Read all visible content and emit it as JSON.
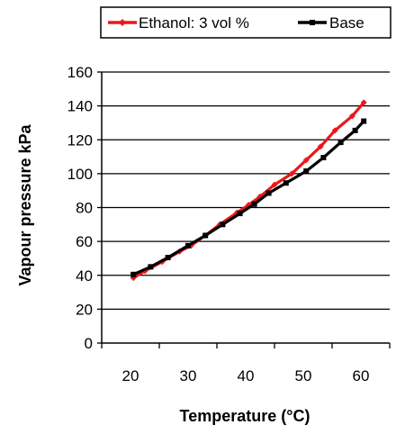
{
  "chart_data": {
    "type": "line",
    "title": "",
    "xlabel": "Temperature (°C)",
    "ylabel": "Vapour pressure kPa",
    "xlim": [
      15,
      65
    ],
    "ylim": [
      0,
      160
    ],
    "x_ticks": [
      20,
      30,
      40,
      50,
      60
    ],
    "y_ticks": [
      0,
      20,
      40,
      60,
      80,
      100,
      120,
      140,
      160
    ],
    "grid": "horizontal",
    "legend_position": "top",
    "series": [
      {
        "name": "Ethanol: 3 vol %",
        "color": "#e8191c",
        "marker": "diamond",
        "points": [
          [
            20.5,
            38.5
          ],
          [
            22.5,
            42.5
          ],
          [
            25.5,
            48
          ],
          [
            28.5,
            54
          ],
          [
            30.5,
            57.5
          ],
          [
            33,
            63.5
          ],
          [
            35.5,
            70
          ],
          [
            38.5,
            77
          ],
          [
            40.5,
            81.5
          ],
          [
            42.5,
            86.5
          ],
          [
            45,
            93.5
          ],
          [
            48,
            100
          ],
          [
            50.5,
            108
          ],
          [
            53,
            116
          ],
          [
            55.5,
            125.5
          ],
          [
            58.5,
            134
          ],
          [
            60.5,
            142
          ]
        ]
      },
      {
        "name": "Base",
        "color": "#000000",
        "marker": "square",
        "points": [
          [
            20.5,
            40.5
          ],
          [
            23.5,
            45
          ],
          [
            26.5,
            50.5
          ],
          [
            30,
            57.5
          ],
          [
            33,
            63.5
          ],
          [
            36,
            70
          ],
          [
            39,
            76.5
          ],
          [
            41.5,
            82
          ],
          [
            44,
            88.5
          ],
          [
            47,
            94.5
          ],
          [
            50.5,
            101.5
          ],
          [
            53.5,
            109.5
          ],
          [
            56.5,
            118.5
          ],
          [
            59,
            125.5
          ],
          [
            60.5,
            131
          ]
        ]
      }
    ]
  }
}
